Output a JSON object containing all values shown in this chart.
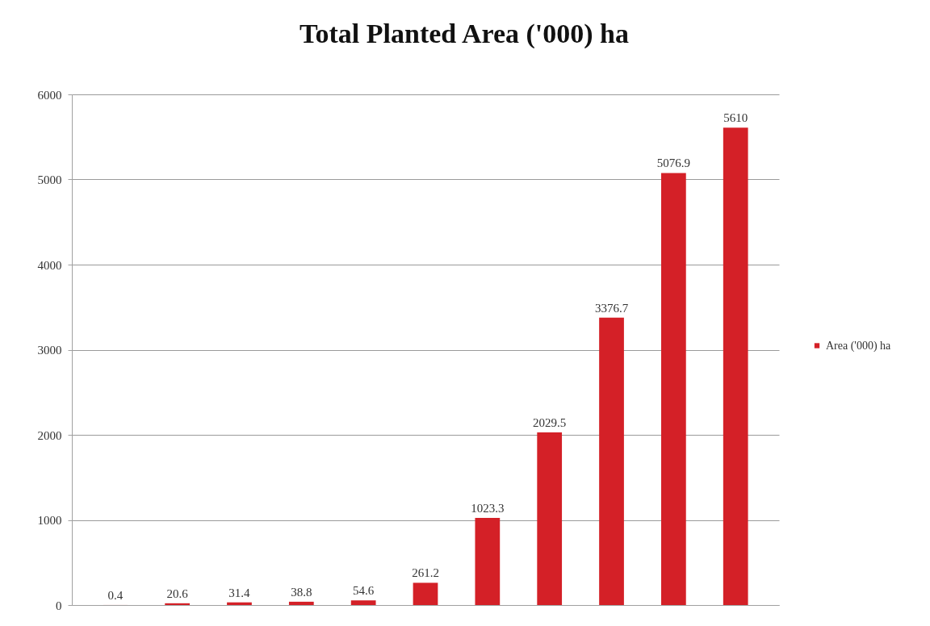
{
  "chart_data": {
    "type": "bar",
    "title": "Total Planted Area ('000) ha",
    "categories": [
      null,
      null,
      null,
      null,
      null,
      null,
      null,
      null,
      null,
      null,
      null
    ],
    "series": [
      {
        "name": "Area ('000) ha",
        "color": "#d42027",
        "values": [
          0.4,
          20.6,
          31.4,
          38.8,
          54.6,
          261.2,
          1023.3,
          2029.5,
          3376.7,
          5076.9,
          5610
        ]
      }
    ],
    "ylim": [
      0,
      6000
    ],
    "yticks": [
      0,
      1000,
      2000,
      3000,
      4000,
      5000,
      6000
    ],
    "grid": "y",
    "legend": "right",
    "tick_labels": "y",
    "data_labels": true
  }
}
